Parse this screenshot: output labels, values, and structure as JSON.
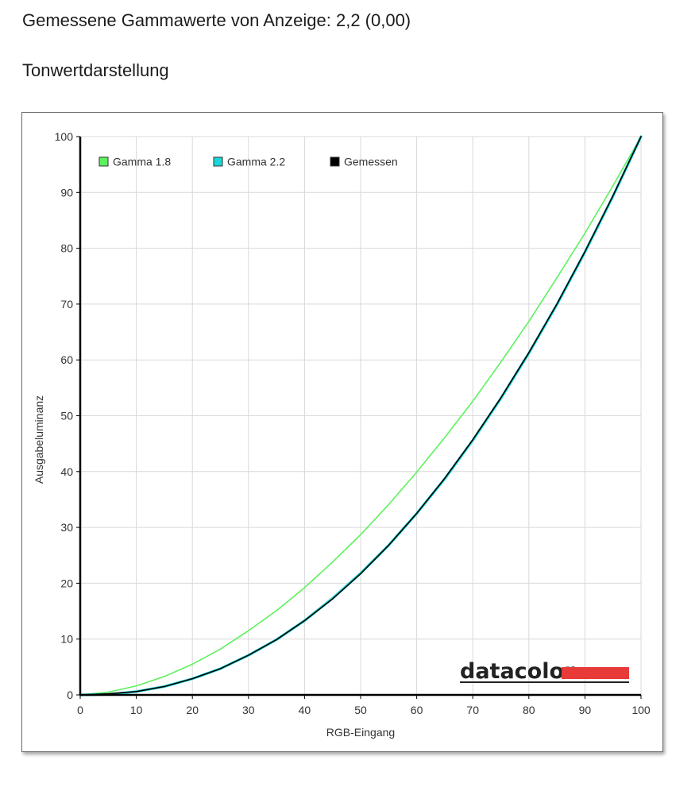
{
  "heading": {
    "gamma_measured": "Gemessene Gammawerte von Anzeige: 2,2 (0,00)",
    "tone_reproduction": "Tonwertdarstellung"
  },
  "chart_data": {
    "type": "line",
    "xlabel": "RGB-Eingang",
    "ylabel": "Ausgabeluminanz",
    "xlim": [
      0,
      100
    ],
    "ylim": [
      0,
      100
    ],
    "x_ticks": [
      "0",
      "10",
      "20",
      "30",
      "40",
      "50",
      "60",
      "70",
      "80",
      "90",
      "100"
    ],
    "y_ticks": [
      "0",
      "10",
      "20",
      "30",
      "40",
      "50",
      "60",
      "70",
      "80",
      "90",
      "100"
    ],
    "grid": true,
    "legend_position": "top-left",
    "x": [
      0,
      5,
      10,
      15,
      20,
      25,
      30,
      35,
      40,
      45,
      50,
      55,
      60,
      65,
      70,
      75,
      80,
      85,
      90,
      95,
      100
    ],
    "series": [
      {
        "name": "Gamma 1.8",
        "color": "#5cf25c",
        "values": [
          0,
          0.5,
          1.6,
          3.3,
          5.5,
          8.2,
          11.5,
          15.1,
          19.2,
          23.8,
          28.7,
          34.1,
          39.9,
          46.1,
          52.6,
          59.6,
          66.9,
          74.7,
          82.7,
          91.2,
          100
        ]
      },
      {
        "name": "Gamma 2.2",
        "color": "#1ad6d6",
        "values": [
          0,
          0.1,
          0.6,
          1.5,
          2.9,
          4.7,
          7.1,
          9.9,
          13.3,
          17.3,
          21.8,
          26.8,
          32.5,
          38.7,
          45.6,
          53.1,
          61.2,
          69.9,
          79.3,
          89.3,
          100
        ]
      },
      {
        "name": "Gemessen",
        "color": "#000000",
        "values": [
          0,
          0.2,
          0.6,
          1.5,
          2.9,
          4.7,
          7.1,
          9.9,
          13.3,
          17.2,
          21.7,
          26.8,
          32.5,
          38.8,
          45.7,
          53.2,
          61.3,
          70.0,
          79.4,
          89.4,
          100
        ]
      }
    ]
  },
  "logo": {
    "text": "datacolor",
    "accent_color": "#e83a38"
  }
}
